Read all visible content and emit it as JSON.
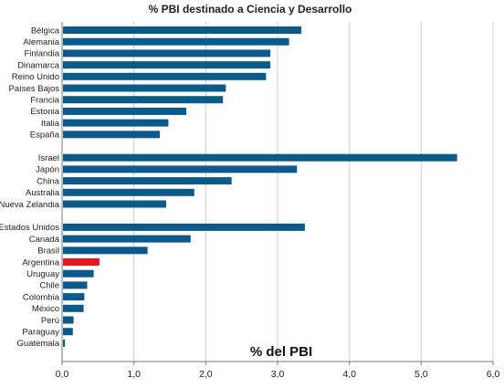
{
  "chart_data": {
    "type": "bar",
    "orientation": "horizontal",
    "title": "% PBI destinado a Ciencia y Desarrollo",
    "xlabel": "% del PBI",
    "ylabel": "",
    "xlim": [
      0,
      6
    ],
    "x_ticks": [
      "0,0",
      "1,0",
      "2,0",
      "3,0",
      "4,0",
      "5,0",
      "6,0"
    ],
    "grid": true,
    "default_color": "#0b5a8a",
    "highlight_color": "#e8171e",
    "groups": [
      {
        "categories": [
          "Bélgica",
          "Alemania",
          "Finlandia",
          "Dinamarca",
          "Reino Unido",
          "Países Bajos",
          "Francia",
          "Estonia",
          "Italia",
          "España"
        ],
        "values": [
          3.33,
          3.16,
          2.9,
          2.9,
          2.84,
          2.28,
          2.24,
          1.73,
          1.48,
          1.36
        ]
      },
      {
        "categories": [
          "Israel",
          "Japón",
          "China",
          "Australia",
          "Nueva Zelandia"
        ],
        "values": [
          5.5,
          3.27,
          2.36,
          1.84,
          1.45
        ]
      },
      {
        "categories": [
          "Estados Unidos",
          "Canadá",
          "Brasil",
          "Argentina",
          "Uruguay",
          "Chile",
          "Colombia",
          "México",
          "Perú",
          "Paraguay",
          "Guatemala"
        ],
        "values": [
          3.38,
          1.79,
          1.19,
          0.52,
          0.44,
          0.35,
          0.31,
          0.3,
          0.16,
          0.15,
          0.04
        ],
        "highlight": "Argentina"
      }
    ]
  }
}
